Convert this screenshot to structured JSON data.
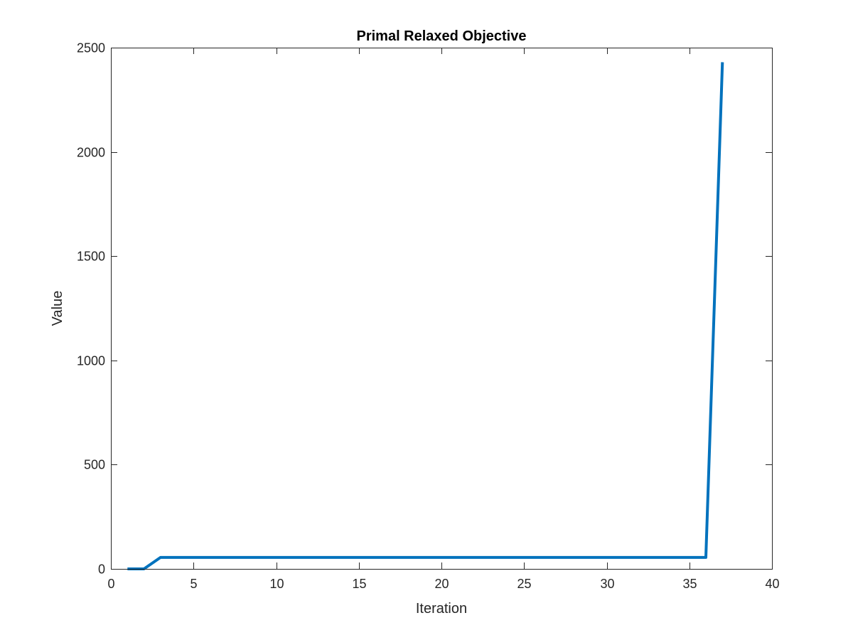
{
  "chart_data": {
    "type": "line",
    "title": "Primal Relaxed Objective",
    "xlabel": "Iteration",
    "ylabel": "Value",
    "xlim": [
      0,
      40
    ],
    "ylim": [
      0,
      2500
    ],
    "xticks": [
      0,
      5,
      10,
      15,
      20,
      25,
      30,
      35,
      40
    ],
    "yticks": [
      0,
      500,
      1000,
      1500,
      2000,
      2500
    ],
    "grid": false,
    "series": [
      {
        "color": "#0072bd",
        "x": [
          1,
          2,
          3,
          4,
          5,
          6,
          7,
          8,
          9,
          10,
          11,
          12,
          13,
          14,
          15,
          16,
          17,
          18,
          19,
          20,
          21,
          22,
          23,
          24,
          25,
          26,
          27,
          28,
          29,
          30,
          31,
          32,
          33,
          34,
          35,
          36,
          37
        ],
        "y": [
          0,
          0,
          55,
          55,
          55,
          55,
          55,
          55,
          55,
          55,
          55,
          55,
          55,
          55,
          55,
          55,
          55,
          55,
          55,
          55,
          55,
          55,
          55,
          55,
          55,
          55,
          55,
          55,
          55,
          55,
          55,
          55,
          55,
          55,
          55,
          55,
          2430
        ]
      }
    ]
  }
}
